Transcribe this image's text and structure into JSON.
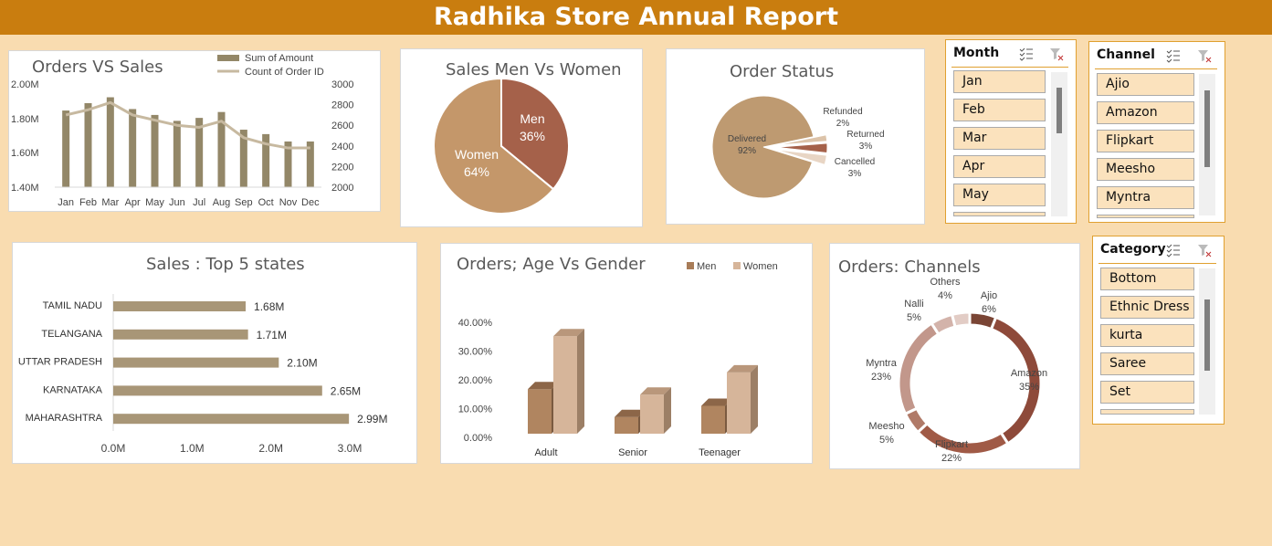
{
  "header": {
    "title": "Radhika Store Annual Report"
  },
  "orders_vs_sales": {
    "title": "Orders VS Sales",
    "legend": [
      "Sum of Amount",
      "Count of Order ID"
    ]
  },
  "gender": {
    "title": "Sales Men Vs Women"
  },
  "status": {
    "title": "Order Status"
  },
  "states": {
    "title": "Sales : Top 5 states"
  },
  "age": {
    "title": "Orders; Age  Vs Gender"
  },
  "channels": {
    "title": "Orders: Channels"
  },
  "slicers": {
    "month": {
      "title": "Month",
      "items": [
        "Jan",
        "Feb",
        "Mar",
        "Apr",
        "May"
      ]
    },
    "channel": {
      "title": "Channel",
      "items": [
        "Ajio",
        "Amazon",
        "Flipkart",
        "Meesho",
        "Myntra"
      ]
    },
    "category": {
      "title": "Category",
      "items": [
        "Bottom",
        "Ethnic Dress",
        "kurta",
        "Saree",
        "Set"
      ]
    }
  },
  "colors": {
    "banner": "#c97d0f",
    "background": "#f9dcb0",
    "bar": "#938768",
    "line": "#c7b9a0",
    "men": "#a5614a",
    "women": "#c4976a",
    "slicer_border": "#e0a030"
  },
  "chart_data": [
    {
      "type": "bar",
      "title": "Orders VS Sales",
      "categories": [
        "Jan",
        "Feb",
        "Mar",
        "Apr",
        "May",
        "Jun",
        "Jul",
        "Aug",
        "Sep",
        "Oct",
        "Nov",
        "Dec"
      ],
      "y_ticks": [
        "2.00M",
        "1.80M",
        "1.60M",
        "1.40M"
      ],
      "y2_ticks": [
        "3000",
        "2800",
        "2600",
        "2400",
        "2200",
        "2000"
      ],
      "ylim": [
        1.3,
        2.0
      ],
      "y2lim": [
        2000,
        3000
      ],
      "series": [
        {
          "name": "Sum of Amount",
          "type": "bar",
          "values": [
            1.82,
            1.87,
            1.91,
            1.83,
            1.79,
            1.75,
            1.77,
            1.81,
            1.69,
            1.66,
            1.61,
            1.61
          ]
        },
        {
          "name": "Count of Order ID",
          "type": "line",
          "axis": "secondary",
          "values": [
            2700,
            2750,
            2820,
            2700,
            2650,
            2600,
            2580,
            2640,
            2480,
            2420,
            2380,
            2380
          ]
        }
      ]
    },
    {
      "type": "pie",
      "title": "Sales Men Vs Women",
      "slices": [
        {
          "label": "Men",
          "pct_label": "36%",
          "value": 36,
          "color": "#a5614a"
        },
        {
          "label": "Women",
          "pct_label": "64%",
          "value": 64,
          "color": "#c4976a"
        }
      ]
    },
    {
      "type": "pie",
      "title": "Order Status",
      "slices": [
        {
          "label": "Delivered",
          "pct_label": "92%",
          "value": 92
        },
        {
          "label": "Refunded",
          "pct_label": "2%",
          "value": 2
        },
        {
          "label": "Returned",
          "pct_label": "3%",
          "value": 3
        },
        {
          "label": "Cancelled",
          "pct_label": "3%",
          "value": 3
        }
      ]
    },
    {
      "type": "bar",
      "orientation": "horizontal",
      "title": "Sales : Top 5 states",
      "categories": [
        "TAMIL NADU",
        "TELANGANA",
        "UTTAR PRADESH",
        "KARNATAKA",
        "MAHARASHTRA"
      ],
      "values": [
        1.68,
        1.71,
        2.1,
        2.65,
        2.99
      ],
      "data_labels": [
        "1.68M",
        "1.71M",
        "2.10M",
        "2.65M",
        "2.99M"
      ],
      "x_ticks": [
        "0.0M",
        "1.0M",
        "2.0M",
        "3.0M"
      ],
      "xlim": [
        0,
        3
      ]
    },
    {
      "type": "bar",
      "title": "Orders; Age  Vs Gender",
      "categories": [
        "Adult",
        "Senior",
        "Teenager"
      ],
      "y_ticks": [
        "40.00%",
        "30.00%",
        "20.00%",
        "10.00%",
        "0.00%"
      ],
      "ylim": [
        0,
        40
      ],
      "series": [
        {
          "name": "Men",
          "values": [
            16,
            6,
            10
          ]
        },
        {
          "name": "Women",
          "values": [
            35,
            14,
            22
          ]
        }
      ]
    },
    {
      "type": "pie",
      "title": "Orders: Channels",
      "slices": [
        {
          "label": "Ajio",
          "pct_label": "6%",
          "value": 6
        },
        {
          "label": "Amazon",
          "pct_label": "35%",
          "value": 35
        },
        {
          "label": "Flipkart",
          "pct_label": "22%",
          "value": 22
        },
        {
          "label": "Meesho",
          "pct_label": "5%",
          "value": 5
        },
        {
          "label": "Myntra",
          "pct_label": "23%",
          "value": 23
        },
        {
          "label": "Nalli",
          "pct_label": "5%",
          "value": 5
        },
        {
          "label": "Others",
          "pct_label": "4%",
          "value": 4
        }
      ]
    }
  ]
}
